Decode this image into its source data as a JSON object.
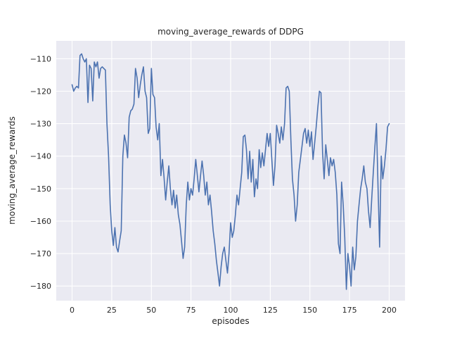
{
  "figure": {
    "title": "moving_average_rewards of DDPG",
    "xlabel": "episodes",
    "ylabel": "moving_average_rewards"
  },
  "chart_data": {
    "type": "line",
    "title": "moving_average_rewards of DDPG",
    "xlabel": "episodes",
    "ylabel": "moving_average_rewards",
    "line_color": "#4c72b0",
    "plot_bg": "#eaeaf2",
    "grid": true,
    "legend": false,
    "x_ticks": [
      0,
      25,
      50,
      75,
      100,
      125,
      150,
      175,
      200
    ],
    "y_ticks": [
      -110,
      -120,
      -130,
      -140,
      -150,
      -160,
      -170,
      -180
    ],
    "xlim": [
      -10,
      210
    ],
    "ylim": [
      -184.5,
      -104.5
    ],
    "x": [
      0,
      1,
      2,
      3,
      4,
      5,
      6,
      7,
      8,
      9,
      10,
      11,
      12,
      13,
      14,
      15,
      16,
      17,
      18,
      19,
      20,
      21,
      22,
      23,
      24,
      25,
      26,
      27,
      28,
      29,
      30,
      31,
      32,
      33,
      34,
      35,
      36,
      37,
      38,
      39,
      40,
      41,
      42,
      43,
      44,
      45,
      46,
      47,
      48,
      49,
      50,
      51,
      52,
      53,
      54,
      55,
      56,
      57,
      58,
      59,
      60,
      61,
      62,
      63,
      64,
      65,
      66,
      67,
      68,
      69,
      70,
      71,
      72,
      73,
      74,
      75,
      76,
      77,
      78,
      79,
      80,
      81,
      82,
      83,
      84,
      85,
      86,
      87,
      88,
      89,
      90,
      91,
      92,
      93,
      94,
      95,
      96,
      97,
      98,
      99,
      100,
      101,
      102,
      103,
      104,
      105,
      106,
      107,
      108,
      109,
      110,
      111,
      112,
      113,
      114,
      115,
      116,
      117,
      118,
      119,
      120,
      121,
      122,
      123,
      124,
      125,
      126,
      127,
      128,
      129,
      130,
      131,
      132,
      133,
      134,
      135,
      136,
      137,
      138,
      139,
      140,
      141,
      142,
      143,
      144,
      145,
      146,
      147,
      148,
      149,
      150,
      151,
      152,
      153,
      154,
      155,
      156,
      157,
      158,
      159,
      160,
      161,
      162,
      163,
      164,
      165,
      166,
      167,
      168,
      169,
      170,
      171,
      172,
      173,
      174,
      175,
      176,
      177,
      178,
      179,
      180,
      181,
      182,
      183,
      184,
      185,
      186,
      187,
      188,
      189,
      190,
      191,
      192,
      193,
      194,
      195,
      196,
      197,
      198,
      199,
      200
    ],
    "y": [
      -118,
      -120,
      -119,
      -118.5,
      -119,
      -109,
      -108.5,
      -110,
      -111,
      -110,
      -123.5,
      -112,
      -113,
      -123,
      -111,
      -112.5,
      -111,
      -116,
      -113,
      -112.5,
      -113,
      -113.5,
      -130,
      -140,
      -155,
      -163,
      -167.5,
      -162,
      -168,
      -169.5,
      -166,
      -163,
      -140,
      -133.5,
      -136,
      -140.5,
      -128,
      -126,
      -125.5,
      -124,
      -113,
      -116,
      -122,
      -118,
      -115,
      -112.5,
      -120,
      -122,
      -133,
      -131.5,
      -113,
      -121,
      -122,
      -131,
      -135,
      -130,
      -146,
      -141,
      -146.5,
      -153.5,
      -148,
      -143,
      -150,
      -155,
      -150.5,
      -156,
      -152,
      -158,
      -161,
      -166,
      -171.5,
      -168,
      -155,
      -148,
      -153.5,
      -150,
      -152,
      -147,
      -141,
      -146,
      -151,
      -146,
      -141.5,
      -146,
      -152,
      -148,
      -155,
      -152,
      -157,
      -163,
      -167,
      -172,
      -176,
      -180,
      -174,
      -170,
      -168,
      -172,
      -176,
      -170,
      -160.5,
      -165,
      -163,
      -158,
      -152,
      -155,
      -150,
      -145,
      -134,
      -133.5,
      -138,
      -147,
      -138.5,
      -148,
      -141,
      -152.5,
      -147,
      -150,
      -138,
      -143.5,
      -139,
      -143,
      -138,
      -133,
      -137,
      -133,
      -141,
      -149,
      -143,
      -130.5,
      -133,
      -136,
      -131,
      -135,
      -130,
      -119,
      -118.5,
      -120,
      -135,
      -147,
      -152,
      -160,
      -155,
      -145,
      -141,
      -137,
      -133,
      -131.5,
      -136,
      -132,
      -137,
      -132.5,
      -141,
      -136,
      -131,
      -125,
      -120,
      -120.5,
      -139,
      -147,
      -136.5,
      -141,
      -146,
      -140.5,
      -143,
      -141,
      -145,
      -152,
      -167,
      -170,
      -148,
      -155,
      -165,
      -181,
      -170,
      -174,
      -180,
      -168,
      -175,
      -171,
      -160,
      -155,
      -150,
      -147,
      -143,
      -148,
      -150,
      -157,
      -162,
      -153,
      -145,
      -137,
      -130,
      -150,
      -168,
      -140,
      -147,
      -143,
      -138,
      -131,
      -130
    ]
  }
}
